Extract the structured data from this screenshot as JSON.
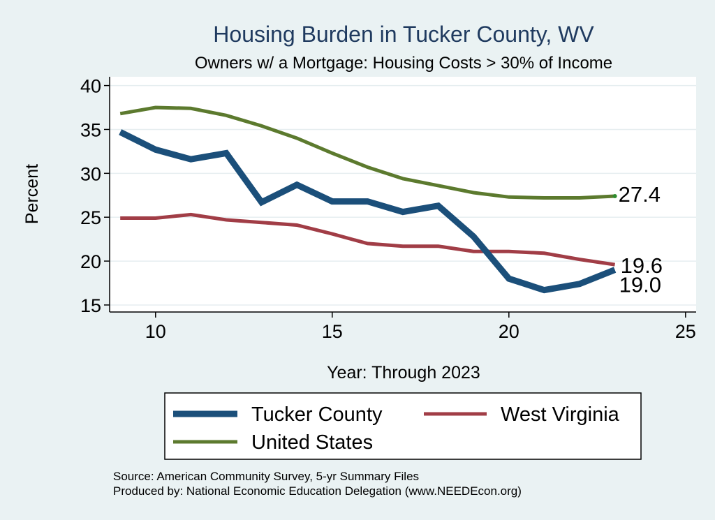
{
  "chart_data": {
    "type": "line",
    "title": "Housing Burden in Tucker County, WV",
    "subtitle": "Owners w/ a Mortgage: Housing Costs > 30% of Income",
    "xlabel": "Year: Through 2023",
    "ylabel": "Percent",
    "xlim": [
      8.7,
      25.3
    ],
    "ylim": [
      14.2,
      41
    ],
    "x_ticks": [
      10,
      15,
      20,
      25
    ],
    "y_ticks": [
      15,
      20,
      25,
      30,
      35,
      40
    ],
    "grid": "horizontal",
    "legend_position": "bottom",
    "x": [
      9,
      10,
      11,
      12,
      13,
      14,
      15,
      16,
      17,
      18,
      19,
      20,
      21,
      22,
      23
    ],
    "series": [
      {
        "name": "Tucker County",
        "color": "#1b4f7a",
        "values": [
          34.7,
          32.7,
          31.6,
          32.3,
          26.7,
          28.7,
          26.8,
          26.8,
          25.6,
          26.3,
          22.8,
          18.0,
          16.7,
          17.4,
          19.0
        ],
        "end_label": "19.0"
      },
      {
        "name": "West Virginia",
        "color": "#a13d46",
        "values": [
          24.9,
          24.9,
          25.3,
          24.7,
          24.4,
          24.1,
          23.1,
          22.0,
          21.7,
          21.7,
          21.1,
          21.1,
          20.9,
          20.2,
          19.6
        ],
        "end_label": "19.6"
      },
      {
        "name": "United States",
        "color": "#5c7a2e",
        "values": [
          36.8,
          37.5,
          37.4,
          36.6,
          35.4,
          34.0,
          32.3,
          30.7,
          29.4,
          28.6,
          27.8,
          27.3,
          27.2,
          27.2,
          27.4
        ],
        "end_label": "27.4"
      }
    ],
    "notes": [
      "Source: American Community Survey, 5-yr Summary Files",
      "Produced by: National Economic Education Delegation (www.NEEDEcon.org)"
    ]
  },
  "colors": {
    "background": "#eaf2f3",
    "plot_background": "#ffffff",
    "title": "#1f3a5f",
    "grid": "#e6eef0"
  }
}
